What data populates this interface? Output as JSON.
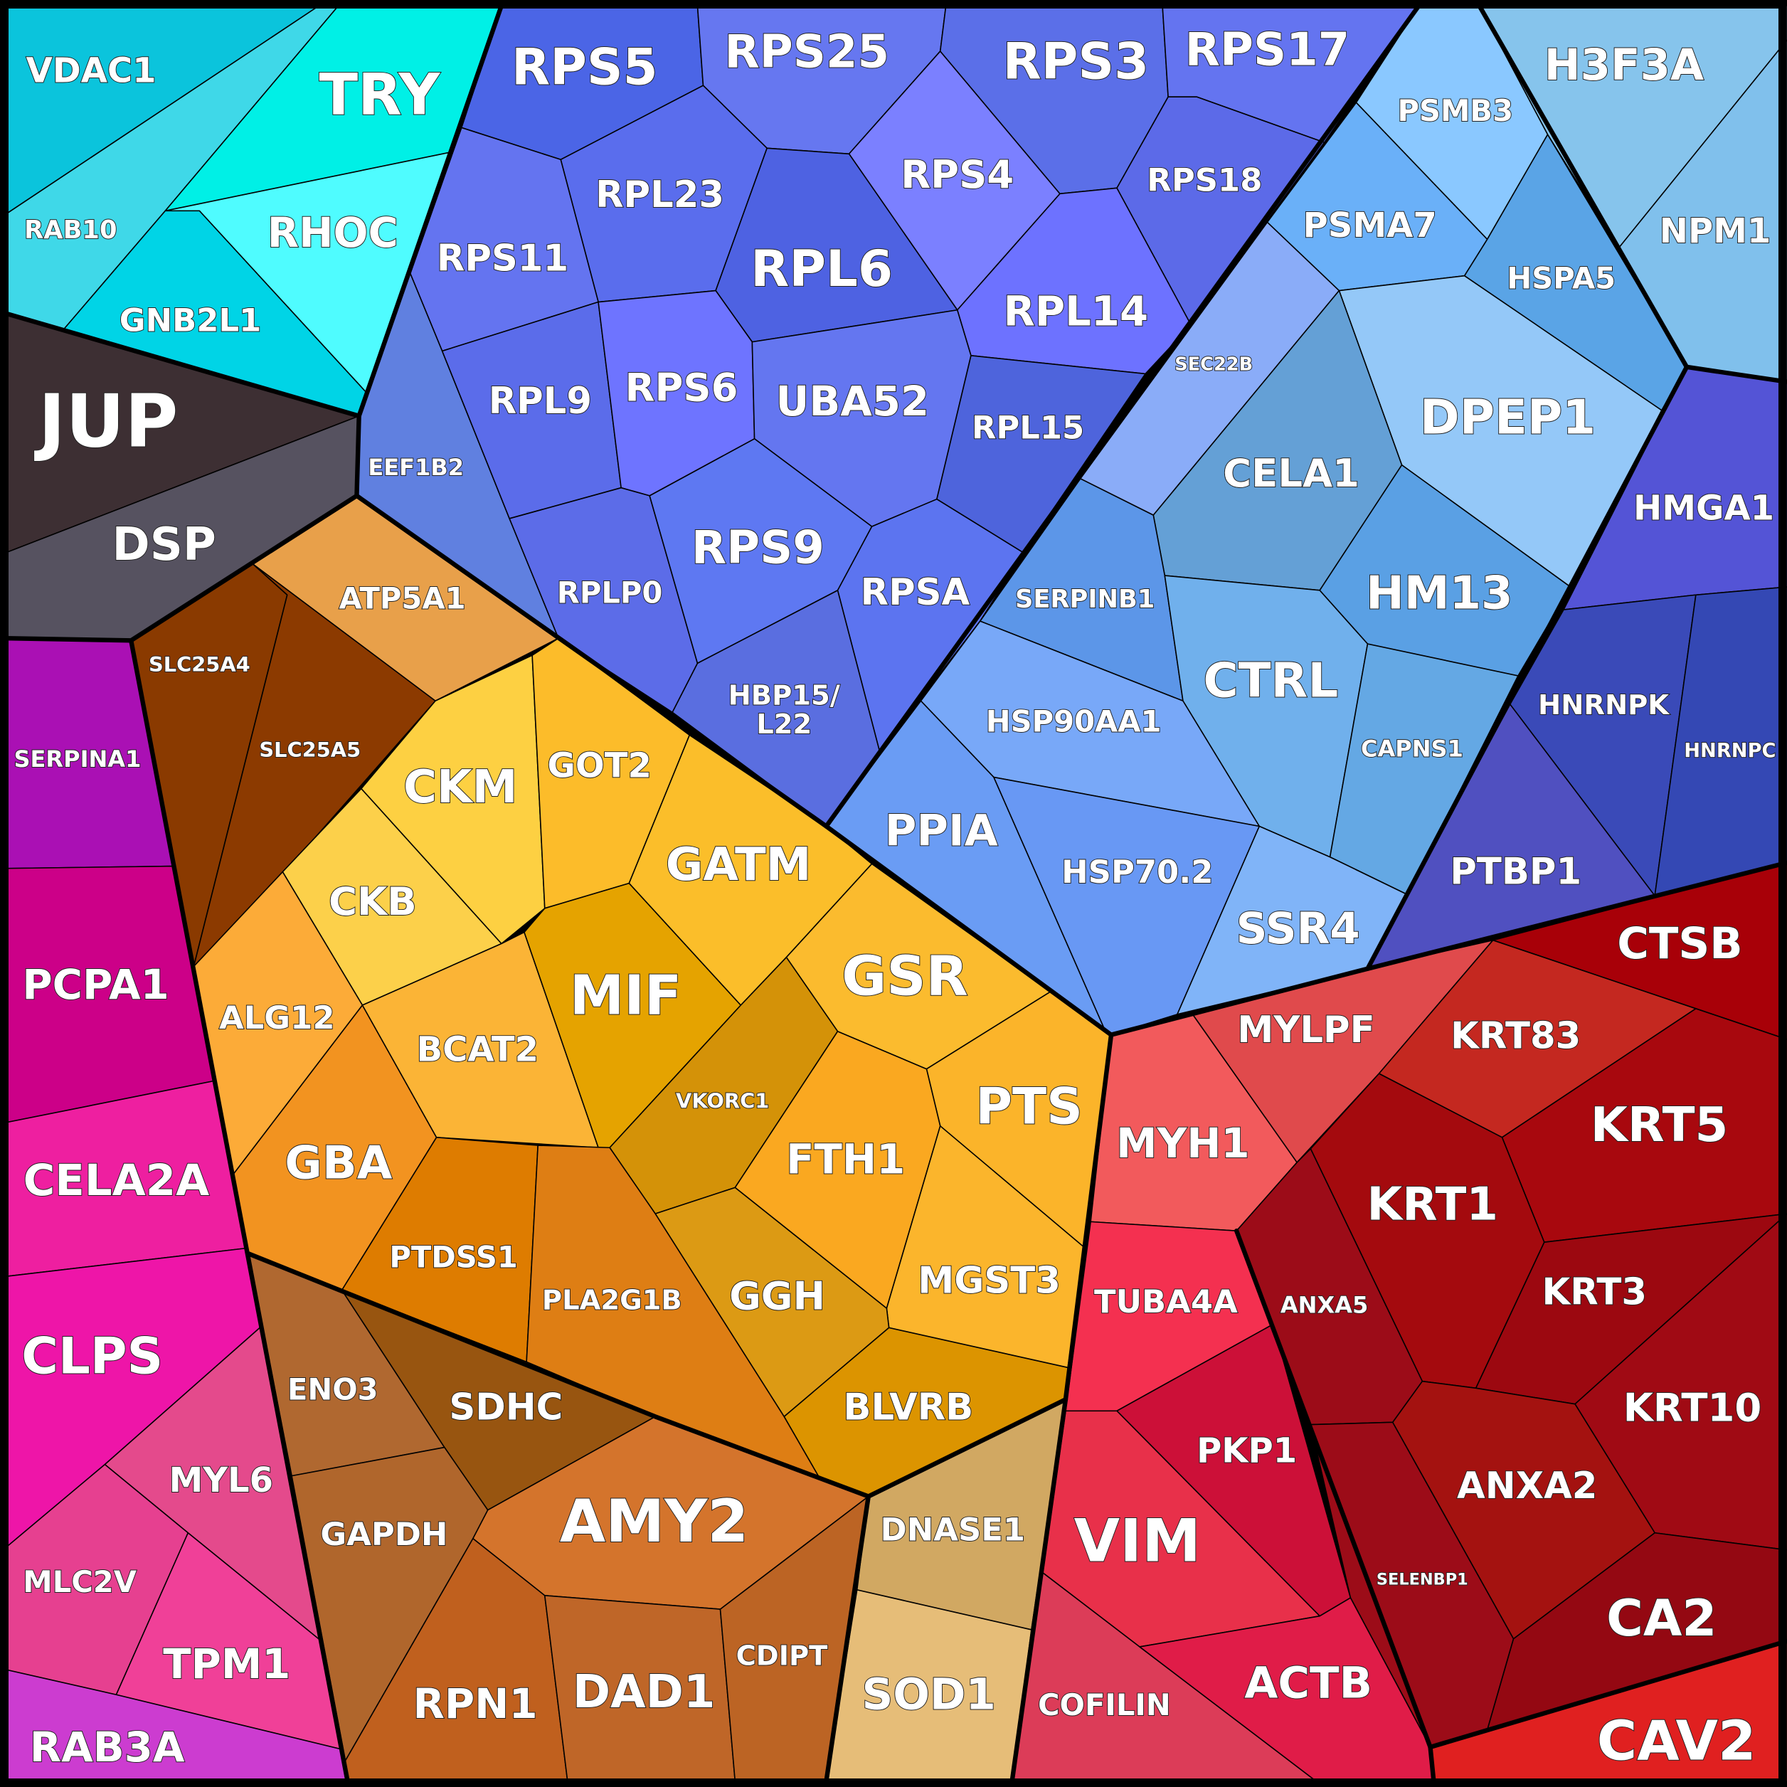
{
  "cells": [
    {
      "label": "VDAC1"
    },
    {
      "label": "RAB10"
    },
    {
      "label": "TRY"
    },
    {
      "label": "RHOC"
    },
    {
      "label": "GNB2L1"
    },
    {
      "label": "JUP"
    },
    {
      "label": "DSP"
    },
    {
      "label": "SERPINA1"
    },
    {
      "label": "PCPA1"
    },
    {
      "label": "CELA2A"
    },
    {
      "label": "CLPS"
    },
    {
      "label": "MYL6"
    },
    {
      "label": "MLC2V"
    },
    {
      "label": "TPM1"
    },
    {
      "label": "RAB3A"
    },
    {
      "label": "ATP5A1"
    },
    {
      "label": "SLC25A4"
    },
    {
      "label": "SLC25A5"
    },
    {
      "label": "CKM"
    },
    {
      "label": "GOT2"
    },
    {
      "label": "CKB"
    },
    {
      "label": "ALG12"
    },
    {
      "label": "GBA"
    },
    {
      "label": "BCAT2"
    },
    {
      "label": "MIF"
    },
    {
      "label": "GATM"
    },
    {
      "label": "GSR"
    },
    {
      "label": "VKORC1"
    },
    {
      "label": "PTS"
    },
    {
      "label": "FTH1"
    },
    {
      "label": "MGST3"
    },
    {
      "label": "GGH"
    },
    {
      "label": "BLVRB"
    },
    {
      "label": "PTDSS1"
    },
    {
      "label": "PLA2G1B"
    },
    {
      "label": "ENO3"
    },
    {
      "label": "SDHC"
    },
    {
      "label": "GAPDH"
    },
    {
      "label": "AMY2"
    },
    {
      "label": "RPN1"
    },
    {
      "label": "DAD1"
    },
    {
      "label": "CDIPT"
    },
    {
      "label": "DNASE1"
    },
    {
      "label": "SOD1"
    },
    {
      "label": "RPS5"
    },
    {
      "label": "RPS25"
    },
    {
      "label": "RPS3"
    },
    {
      "label": "RPS17"
    },
    {
      "label": "RPS4"
    },
    {
      "label": "RPS18"
    },
    {
      "label": "RPL23"
    },
    {
      "label": "RPS11"
    },
    {
      "label": "RPL6"
    },
    {
      "label": "RPL14"
    },
    {
      "label": "EEF1B2"
    },
    {
      "label": "RPL9"
    },
    {
      "label": "RPS6"
    },
    {
      "label": "UBA52"
    },
    {
      "label": "RPL15"
    },
    {
      "label": "RPLP0"
    },
    {
      "label": "RPS9"
    },
    {
      "label": "RPSA"
    },
    {
      "label": [
        "HBP15/",
        "L22"
      ]
    },
    {
      "label": "PSMB3"
    },
    {
      "label": "PSMA7"
    },
    {
      "label": "HSPA5"
    },
    {
      "label": "SEC22B"
    },
    {
      "label": "DPEP1"
    },
    {
      "label": "CELA1"
    },
    {
      "label": "HM13"
    },
    {
      "label": "SERPINB1"
    },
    {
      "label": "CTRL"
    },
    {
      "label": "CAPNS1"
    },
    {
      "label": "HSP90AA1"
    },
    {
      "label": "PPIA"
    },
    {
      "label": "HSP70.2"
    },
    {
      "label": "SSR4"
    },
    {
      "label": "H3F3A"
    },
    {
      "label": "NPM1"
    },
    {
      "label": "HMGA1"
    },
    {
      "label": "HNRNPK"
    },
    {
      "label": "HNRNPC"
    },
    {
      "label": "PTBP1"
    },
    {
      "label": "CTSB"
    },
    {
      "label": "MYLPF"
    },
    {
      "label": "MYH1"
    },
    {
      "label": "KRT83"
    },
    {
      "label": "KRT5"
    },
    {
      "label": "KRT1"
    },
    {
      "label": "ANXA5"
    },
    {
      "label": "KRT3"
    },
    {
      "label": "KRT10"
    },
    {
      "label": "TUBA4A"
    },
    {
      "label": "PKP1"
    },
    {
      "label": "ANXA2"
    },
    {
      "label": "SELENBP1"
    },
    {
      "label": "VIM"
    },
    {
      "label": "CA2"
    },
    {
      "label": "COFILIN"
    },
    {
      "label": "ACTB"
    },
    {
      "label": "CAV2"
    }
  ]
}
